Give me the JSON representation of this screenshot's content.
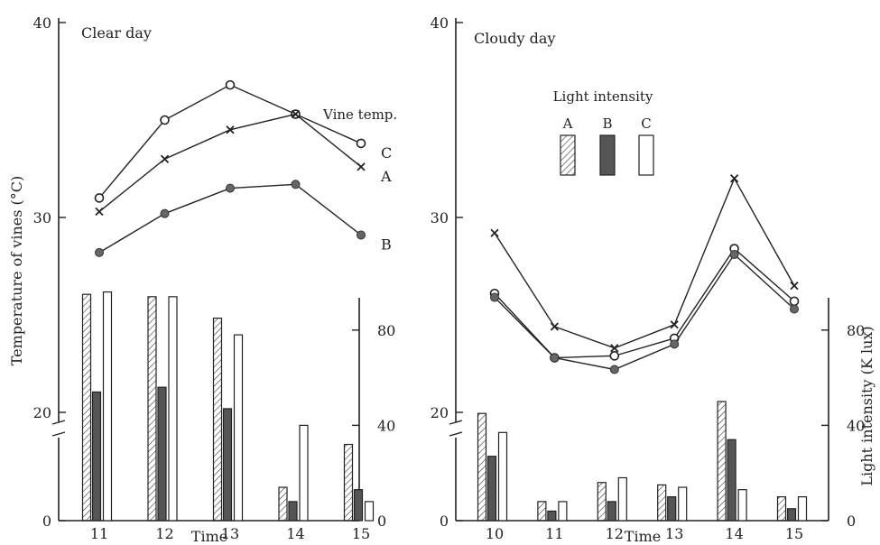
{
  "figure": {
    "ylabel_left": "Temperature of vines (°C)",
    "ylabel_right": "Light intensity (K lux)",
    "xlabel": "Time",
    "legend": {
      "title": "Light intensity",
      "items": [
        "A",
        "B",
        "C"
      ],
      "vine_temp_label": "Vine temp."
    }
  },
  "chart_data": [
    {
      "type": "line",
      "title": "Clear day",
      "xlabel": "Time",
      "ylabel": "Temperature of vines (°C)",
      "x": [
        11,
        12,
        13,
        14,
        15
      ],
      "temp_axis": {
        "ticks": [
          0,
          20,
          30,
          40
        ],
        "axis_break_between": [
          0,
          20
        ]
      },
      "series": [
        {
          "name": "C",
          "marker": "open-circle",
          "values": [
            31.0,
            35.0,
            36.8,
            35.3,
            33.8
          ]
        },
        {
          "name": "A",
          "marker": "cross",
          "values": [
            30.3,
            33.0,
            34.5,
            35.3,
            32.6
          ]
        },
        {
          "name": "B",
          "marker": "filled-circle",
          "values": [
            28.2,
            30.2,
            31.5,
            31.7,
            29.1
          ]
        }
      ],
      "light_intensity": {
        "type": "bar",
        "ylabel": "Light intensity (K lux)",
        "ylim": [
          0,
          110
        ],
        "ticks": [
          0,
          40,
          80
        ],
        "series": [
          {
            "name": "A",
            "pattern": "hatched",
            "values": [
              95,
              94,
              85,
              14,
              32
            ]
          },
          {
            "name": "B",
            "pattern": "filled",
            "values": [
              54,
              56,
              47,
              8,
              13
            ]
          },
          {
            "name": "C",
            "pattern": "open",
            "values": [
              96,
              94,
              78,
              40,
              8
            ]
          }
        ]
      }
    },
    {
      "type": "line",
      "title": "Cloudy day",
      "xlabel": "Time",
      "ylabel": "Temperature of vines (°C)",
      "x": [
        10,
        11,
        12,
        13,
        14,
        15
      ],
      "temp_axis": {
        "ticks": [
          0,
          20,
          30,
          40
        ],
        "axis_break_between": [
          0,
          20
        ]
      },
      "series": [
        {
          "name": "A",
          "marker": "cross",
          "values": [
            29.2,
            24.4,
            23.3,
            24.5,
            32.0,
            26.5
          ]
        },
        {
          "name": "C",
          "marker": "open-circle",
          "values": [
            26.1,
            22.8,
            22.9,
            23.8,
            28.4,
            25.7
          ]
        },
        {
          "name": "B",
          "marker": "filled-circle",
          "values": [
            25.9,
            22.8,
            22.2,
            23.5,
            28.1,
            25.3
          ]
        }
      ],
      "light_intensity": {
        "type": "bar",
        "ylabel": "Light intensity (K lux)",
        "ylim": [
          0,
          110
        ],
        "ticks": [
          0,
          40,
          80
        ],
        "series": [
          {
            "name": "A",
            "pattern": "hatched",
            "values": [
              45,
              8,
              16,
              15,
              50,
              10
            ]
          },
          {
            "name": "B",
            "pattern": "filled",
            "values": [
              27,
              4,
              8,
              10,
              34,
              5
            ]
          },
          {
            "name": "C",
            "pattern": "open",
            "values": [
              37,
              8,
              18,
              14,
              13,
              10
            ]
          }
        ]
      }
    }
  ]
}
